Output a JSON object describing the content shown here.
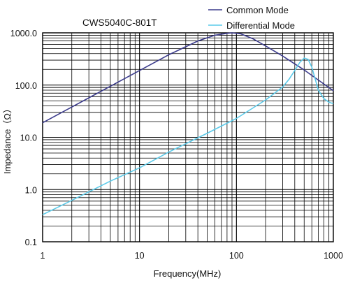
{
  "chart_data": {
    "type": "line",
    "title": "CWS5040C-801T",
    "xlabel": "Frequency(MHz)",
    "ylabel": "Impedance（Ω）",
    "x_scale": "log",
    "y_scale": "log",
    "xlim": [
      1,
      1000
    ],
    "ylim": [
      0.1,
      1000
    ],
    "grid": true,
    "legend_position": "top-right",
    "x_tick_labels": [
      "1",
      "10",
      "100",
      "1000"
    ],
    "y_tick_labels": [
      "1000.0",
      "100.0",
      "10.0",
      "1.0",
      "0.1"
    ],
    "series": [
      {
        "name": "Common Mode",
        "color": "#3b3b8c",
        "points": [
          [
            1,
            19
          ],
          [
            2,
            38
          ],
          [
            5,
            95
          ],
          [
            10,
            190
          ],
          [
            20,
            380
          ],
          [
            40,
            700
          ],
          [
            60,
            900
          ],
          [
            80,
            980
          ],
          [
            90,
            1000
          ],
          [
            110,
            960
          ],
          [
            150,
            760
          ],
          [
            200,
            560
          ],
          [
            300,
            360
          ],
          [
            400,
            255
          ],
          [
            500,
            195
          ],
          [
            700,
            125
          ],
          [
            1000,
            78
          ]
        ]
      },
      {
        "name": "Differential Mode",
        "color": "#5ccbea",
        "points": [
          [
            1,
            0.33
          ],
          [
            2,
            0.62
          ],
          [
            5,
            1.45
          ],
          [
            10,
            2.6
          ],
          [
            20,
            5.2
          ],
          [
            50,
            12
          ],
          [
            100,
            23
          ],
          [
            200,
            52
          ],
          [
            300,
            92
          ],
          [
            350,
            130
          ],
          [
            400,
            190
          ],
          [
            450,
            270
          ],
          [
            500,
            330
          ],
          [
            550,
            310
          ],
          [
            600,
            220
          ],
          [
            650,
            130
          ],
          [
            700,
            80
          ],
          [
            800,
            55
          ],
          [
            900,
            47
          ],
          [
            1000,
            44
          ]
        ]
      }
    ]
  }
}
